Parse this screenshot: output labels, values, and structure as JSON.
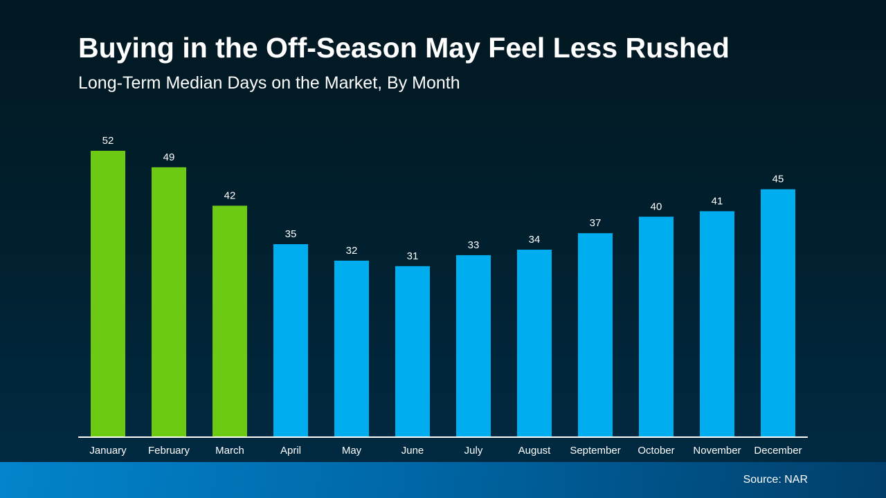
{
  "chart_data": {
    "type": "bar",
    "title": "Buying in the Off-Season May Feel Less Rushed",
    "subtitle": "Long-Term Median Days on the Market, By Month",
    "categories": [
      "January",
      "February",
      "March",
      "April",
      "May",
      "June",
      "July",
      "August",
      "September",
      "October",
      "November",
      "December"
    ],
    "values": [
      52,
      49,
      42,
      35,
      32,
      31,
      33,
      34,
      37,
      40,
      41,
      45
    ],
    "highlighted": [
      "January",
      "February",
      "March"
    ],
    "xlabel": "",
    "ylabel": "",
    "ylim": [
      0,
      52
    ],
    "grid": false,
    "colors": {
      "highlight": "#6cc914",
      "default": "#00adef",
      "axis": "#ffffff"
    }
  },
  "source": "Source: NAR"
}
